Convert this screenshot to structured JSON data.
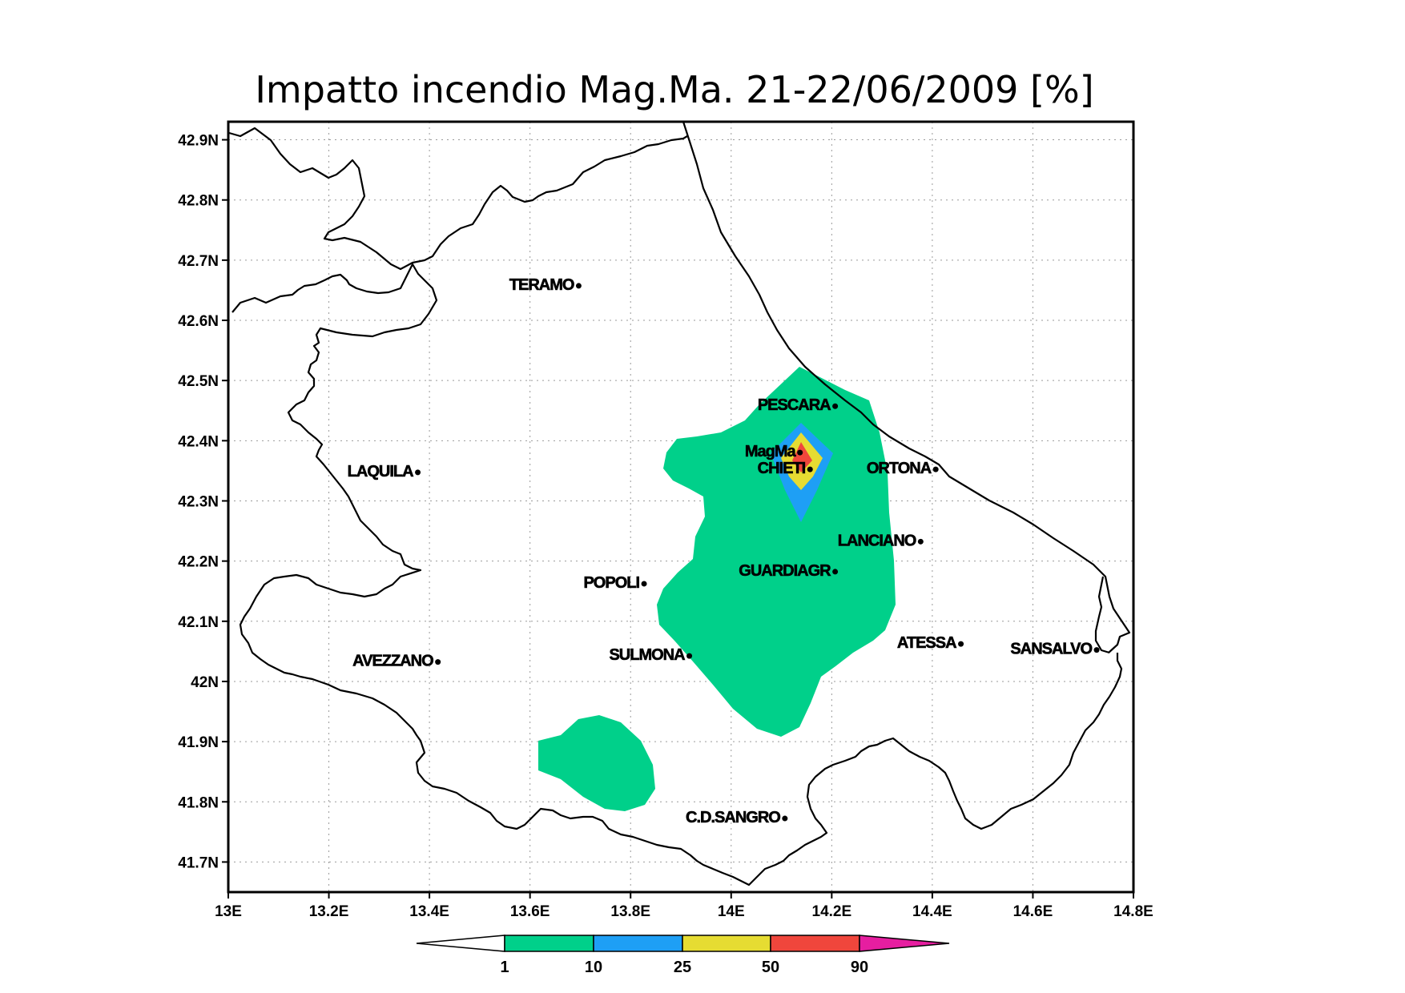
{
  "title": "Impatto incendio Mag.Ma. 21-22/06/2009 [%]",
  "axes": {
    "lon_ticks": [
      {
        "value": 13.0,
        "label": "13E"
      },
      {
        "value": 13.2,
        "label": "13.2E"
      },
      {
        "value": 13.4,
        "label": "13.4E"
      },
      {
        "value": 13.6,
        "label": "13.6E"
      },
      {
        "value": 13.8,
        "label": "13.8E"
      },
      {
        "value": 14.0,
        "label": "14E"
      },
      {
        "value": 14.2,
        "label": "14.2E"
      },
      {
        "value": 14.4,
        "label": "14.4E"
      },
      {
        "value": 14.6,
        "label": "14.6E"
      },
      {
        "value": 14.8,
        "label": "14.8E"
      }
    ],
    "lat_ticks": [
      {
        "value": 42.9,
        "label": "42.9N"
      },
      {
        "value": 42.8,
        "label": "42.8N"
      },
      {
        "value": 42.7,
        "label": "42.7N"
      },
      {
        "value": 42.6,
        "label": "42.6N"
      },
      {
        "value": 42.5,
        "label": "42.5N"
      },
      {
        "value": 42.4,
        "label": "42.4N"
      },
      {
        "value": 42.3,
        "label": "42.3N"
      },
      {
        "value": 42.2,
        "label": "42.2N"
      },
      {
        "value": 42.1,
        "label": "42.1N"
      },
      {
        "value": 42.0,
        "label": "42N"
      },
      {
        "value": 41.9,
        "label": "41.9N"
      },
      {
        "value": 41.8,
        "label": "41.8N"
      },
      {
        "value": 41.7,
        "label": "41.7N"
      }
    ],
    "lon_range": [
      13.0,
      14.8
    ],
    "lat_range": [
      41.65,
      42.93
    ],
    "grid": true
  },
  "cities": [
    {
      "name": "TERAMO",
      "lon": 13.7,
      "lat": 42.66
    },
    {
      "name": "PESCARA",
      "lon": 14.21,
      "lat": 42.46
    },
    {
      "name": "MagMa",
      "lon": 14.14,
      "lat": 42.383
    },
    {
      "name": "CHIETI",
      "lon": 14.16,
      "lat": 42.355
    },
    {
      "name": "ORTONA",
      "lon": 14.41,
      "lat": 42.355
    },
    {
      "name": "LAQUILA",
      "lon": 13.38,
      "lat": 42.35
    },
    {
      "name": "LANCIANO",
      "lon": 14.38,
      "lat": 42.235
    },
    {
      "name": "GUARDIAGR",
      "lon": 14.21,
      "lat": 42.185
    },
    {
      "name": "POPOLI",
      "lon": 13.83,
      "lat": 42.165
    },
    {
      "name": "ATESSA",
      "lon": 14.46,
      "lat": 42.065
    },
    {
      "name": "SANSALVO",
      "lon": 14.73,
      "lat": 42.055
    },
    {
      "name": "SULMONA",
      "lon": 13.92,
      "lat": 42.045
    },
    {
      "name": "AVEZZANO",
      "lon": 13.42,
      "lat": 42.035
    },
    {
      "name": "C.D.SANGRO",
      "lon": 14.11,
      "lat": 41.775
    }
  ],
  "colorbar": {
    "colors": [
      "#ffffff",
      "#00d08a",
      "#1e9ff5",
      "#e6dc32",
      "#f0463c",
      "#e61ea0"
    ],
    "labels": [
      "1",
      "10",
      "25",
      "50",
      "90"
    ]
  },
  "contours": {
    "levels": [
      1,
      10,
      25,
      50,
      90
    ],
    "fill_colors": [
      "#00d08a",
      "#1e9ff5",
      "#e6dc32",
      "#f0463c"
    ]
  }
}
